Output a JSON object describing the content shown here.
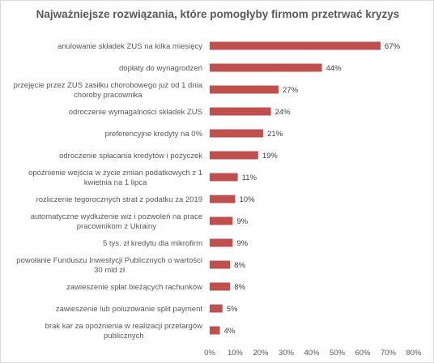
{
  "chart_data": {
    "type": "bar",
    "orientation": "horizontal",
    "title": "Najważniejsze rozwiązania, które pomogłyby firmom przetrwać kryzys",
    "categories": [
      [
        "anulowanie składek ZUS na kilka miesięcy"
      ],
      [
        "dopłaty do wynagrodzeń"
      ],
      [
        "przejęcie przez ZUS zasiłku chorobowego już od 1 dnia",
        "choroby pracownika"
      ],
      [
        "odroczenie wymagalności składek ZUS"
      ],
      [
        "preferencyjne kredyty na 0%"
      ],
      [
        "odroczenie spłacania kredytów i pożyczek"
      ],
      [
        "opóźnienie wejścia w życie zmian podatkowych z 1",
        "kwietnia na 1 lipca"
      ],
      [
        "rozliczenie tegorocznych strat z podatku za 2019"
      ],
      [
        "automatyczne wydłużenie wiz i pozwoleń na prace",
        "pracownikom z Ukrainy"
      ],
      [
        "5 tys. zł kredytu dla mikrofirm"
      ],
      [
        "powołanie Funduszu Inwestycji Publicznych o wartości",
        "30 mld zł"
      ],
      [
        "zawieszenie spłat bieżących rachunków"
      ],
      [
        "zawieszenie lub poluzowanie split payment"
      ],
      [
        "brak kar za opóźnienia w realizacji przetargów",
        "publicznych"
      ]
    ],
    "values": [
      67,
      44,
      27,
      24,
      21,
      19,
      11,
      10,
      9,
      9,
      8,
      8,
      5,
      4
    ],
    "value_labels": [
      "67%",
      "44%",
      "27%",
      "24%",
      "21%",
      "19%",
      "11%",
      "10%",
      "9%",
      "9%",
      "8%",
      "8%",
      "5%",
      "4%"
    ],
    "xlim": [
      0,
      80
    ],
    "x_ticks": [
      0,
      10,
      20,
      30,
      40,
      50,
      60,
      70,
      80
    ],
    "x_tick_labels": [
      "0%",
      "10%",
      "20%",
      "30%",
      "40%",
      "50%",
      "60%",
      "70%",
      "80%"
    ],
    "grid": false,
    "legend": "none",
    "bar_color": "#c0504d"
  }
}
